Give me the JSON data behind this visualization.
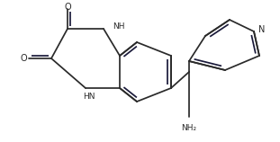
{
  "bg_color": "#ffffff",
  "line_color": "#2a2a2a",
  "double_bond_color": "#1a1a3a",
  "text_color": "#2a2a2a",
  "line_width": 1.25,
  "figsize": [
    3.11,
    1.58
  ],
  "dpi": 100,
  "labels": {
    "O_top": "O",
    "O_left": "O",
    "NH_top": "NH",
    "HN_bot": "HN",
    "NH2": "NH₂",
    "N_py": "N"
  },
  "font_size_atom": 7.0,
  "font_size_label": 6.5
}
